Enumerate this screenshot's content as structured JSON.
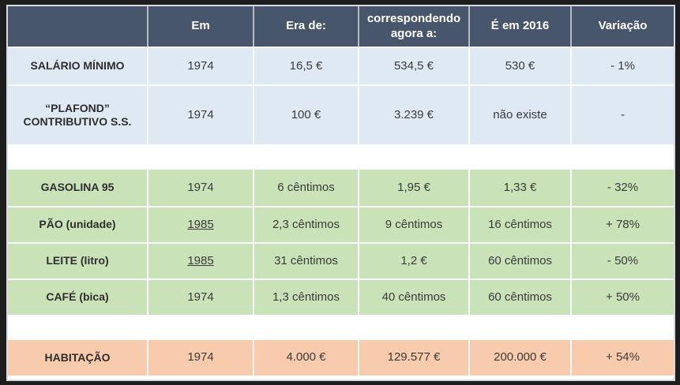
{
  "colors": {
    "frame": "#1d1d1d",
    "outer-line": "#d6dbe2",
    "header-bg": "#47566b",
    "header-text": "#ffffff",
    "header-grid": "#b3bbc7",
    "grid": "#fafbfc",
    "blue": "#dee9f4",
    "green": "#c9e2b8",
    "orange": "#f8cbad",
    "text": "#3b3b3b"
  },
  "header": {
    "cols": [
      "",
      "Em",
      "Era de:",
      "correspondendo agora a:",
      "É em 2016",
      "Variação"
    ]
  },
  "sections": [
    {
      "rows": [
        {
          "label": "SALÁRIO MÍNIMO",
          "em": "1974",
          "em_underlined": false,
          "era": "16,5 €",
          "agora": "534,5 €",
          "em2016": "530 €",
          "variacao": "- 1%"
        },
        {
          "label": "“PLAFOND” CONTRIBUTIVO S.S.",
          "em": "1974",
          "em_underlined": false,
          "era": "100 €",
          "agora": "3.239 €",
          "em2016": "não existe",
          "variacao": "-"
        }
      ]
    },
    {
      "rows": [
        {
          "label": "GASOLINA 95",
          "em": "1974",
          "em_underlined": false,
          "era": "6 cêntimos",
          "agora": "1,95 €",
          "em2016": "1,33 €",
          "variacao": "- 32%"
        },
        {
          "label": "PÃO (unidade)",
          "em": "1985",
          "em_underlined": true,
          "era": "2,3 cêntimos",
          "agora": "9 cêntimos",
          "em2016": "16 cêntimos",
          "variacao": "+ 78%"
        },
        {
          "label": "LEITE (litro)",
          "em": "1985",
          "em_underlined": true,
          "era": "31 cêntimos",
          "agora": "1,2 €",
          "em2016": "60 cêntimos",
          "variacao": "- 50%"
        },
        {
          "label": "CAFÉ (bica)",
          "em": "1974",
          "em_underlined": false,
          "era": "1,3 cêntimos",
          "agora": "40 cêntimos",
          "em2016": "60 cêntimos",
          "variacao": "+ 50%"
        }
      ]
    },
    {
      "rows": [
        {
          "label": "HABITAÇÃO",
          "em": "1974",
          "em_underlined": false,
          "era": "4.000 €",
          "agora": "129.577 €",
          "em2016": "200.000 €",
          "variacao": "+ 54%"
        }
      ]
    }
  ]
}
